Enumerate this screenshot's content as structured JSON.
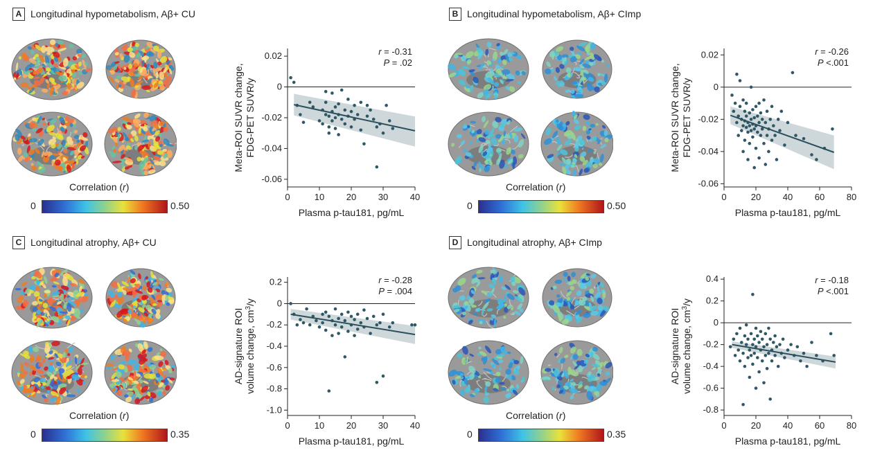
{
  "panels": [
    {
      "letter": "A",
      "title": "Longitudinal hypometabolism, Aβ+ CU",
      "brain_tone": "hot",
      "colorbar": {
        "label_text": "Correlation",
        "label_var": "r",
        "min": "0",
        "max": "0.50"
      },
      "stats": {
        "r_text": "= -0.31",
        "p_text": "= .02"
      },
      "ylabel_line1": "Meta-ROI SUVR change,",
      "ylabel_line2": "FDG-PET SUVR/y",
      "ylabel_sup": "",
      "xlabel": "Plasma p-tau181, pg/mL"
    },
    {
      "letter": "B",
      "title": "Longitudinal hypometabolism, Aβ+ CImp",
      "brain_tone": "cool",
      "colorbar": {
        "label_text": "Correlation",
        "label_var": "r",
        "min": "0",
        "max": "0.50"
      },
      "stats": {
        "r_text": "= -0.26",
        "p_text": "<.001"
      },
      "ylabel_line1": "Meta-ROI SUVR change,",
      "ylabel_line2": "FDG-PET SUVR/y",
      "ylabel_sup": "",
      "xlabel": "Plasma p-tau181, pg/mL"
    },
    {
      "letter": "C",
      "title": "Longitudinal atrophy, Aβ+ CU",
      "brain_tone": "mixed",
      "colorbar": {
        "label_text": "Correlation",
        "label_var": "r",
        "min": "0",
        "max": "0.35"
      },
      "stats": {
        "r_text": "= -0.28",
        "p_text": "= .004"
      },
      "ylabel_line1": "AD-signature ROI",
      "ylabel_line2": "volume change, cm",
      "ylabel_sup": "3",
      "ylabel_tail": "/y",
      "xlabel": "Plasma p-tau181, pg/mL"
    },
    {
      "letter": "D",
      "title": "Longitudinal atrophy, Aβ+ CImp",
      "brain_tone": "cool",
      "colorbar": {
        "label_text": "Correlation",
        "label_var": "r",
        "min": "0",
        "max": "0.35"
      },
      "stats": {
        "r_text": "= -0.18",
        "p_text": "<.001"
      },
      "ylabel_line1": "AD-signature ROI",
      "ylabel_line2": "volume change, cm",
      "ylabel_sup": "3",
      "ylabel_tail": "/y",
      "xlabel": "Plasma p-tau181, pg/mL"
    }
  ],
  "chart_data": [
    {
      "type": "scatter",
      "panel": "A",
      "xlim": [
        0,
        40
      ],
      "ylim": [
        -0.065,
        0.025
      ],
      "x_ticks": [
        0,
        10,
        20,
        30,
        40
      ],
      "x_tick_labels": [
        "0",
        "10",
        "20",
        "30",
        "40"
      ],
      "y_ticks": [
        0.02,
        0,
        -0.02,
        -0.04,
        -0.06
      ],
      "y_tick_labels": [
        "0.02",
        "0",
        "-0.02",
        "-0.04",
        "-0.06"
      ],
      "reference_line_y": 0,
      "fit": {
        "x": [
          2,
          40
        ],
        "y": [
          -0.0115,
          -0.0285
        ],
        "ci_upper": [
          -0.0045,
          -0.0192
        ],
        "ci_lower": [
          -0.0185,
          -0.0388
        ]
      },
      "points": [
        [
          1,
          0.006
        ],
        [
          2,
          0.003
        ],
        [
          3,
          -0.012
        ],
        [
          4,
          -0.018
        ],
        [
          5,
          -0.023
        ],
        [
          7,
          -0.01
        ],
        [
          8,
          -0.013
        ],
        [
          10,
          -0.022
        ],
        [
          11,
          -0.015
        ],
        [
          11,
          -0.024
        ],
        [
          12,
          -0.003
        ],
        [
          12,
          -0.01
        ],
        [
          12,
          -0.018
        ],
        [
          13,
          -0.019
        ],
        [
          13,
          -0.026
        ],
        [
          13,
          -0.03
        ],
        [
          14,
          -0.004
        ],
        [
          14,
          -0.016
        ],
        [
          14,
          -0.022
        ],
        [
          15,
          -0.013
        ],
        [
          15,
          -0.02
        ],
        [
          15,
          -0.027
        ],
        [
          16,
          -0.011
        ],
        [
          16,
          -0.018
        ],
        [
          16,
          -0.031
        ],
        [
          17,
          -0.002
        ],
        [
          17,
          -0.021
        ],
        [
          18,
          -0.015
        ],
        [
          18,
          -0.024
        ],
        [
          19,
          -0.008
        ],
        [
          19,
          -0.019
        ],
        [
          20,
          -0.016
        ],
        [
          20,
          -0.026
        ],
        [
          21,
          -0.012
        ],
        [
          21,
          -0.021
        ],
        [
          22,
          -0.018
        ],
        [
          23,
          -0.01
        ],
        [
          23,
          -0.028
        ],
        [
          24,
          -0.037
        ],
        [
          25,
          -0.012
        ],
        [
          25,
          -0.019
        ],
        [
          26,
          -0.015
        ],
        [
          27,
          -0.021
        ],
        [
          28,
          -0.052
        ],
        [
          28,
          -0.026
        ],
        [
          29,
          -0.024
        ],
        [
          30,
          -0.03
        ],
        [
          31,
          -0.012
        ],
        [
          32,
          -0.022
        ],
        [
          33,
          -0.027
        ]
      ]
    },
    {
      "type": "scatter",
      "panel": "B",
      "xlim": [
        0,
        80
      ],
      "ylim": [
        -0.062,
        0.024
      ],
      "x_ticks": [
        0,
        20,
        40,
        60,
        80
      ],
      "x_tick_labels": [
        "0",
        "20",
        "40",
        "60",
        "80"
      ],
      "y_ticks": [
        0.02,
        0,
        -0.02,
        -0.04,
        -0.06
      ],
      "y_tick_labels": [
        "0.02",
        "0",
        "-0.02",
        "-0.04",
        "-0.06"
      ],
      "reference_line_y": 0,
      "fit": {
        "x": [
          4,
          69
        ],
        "y": [
          -0.0175,
          -0.0405
        ],
        "ci_upper": [
          -0.012,
          -0.03
        ],
        "ci_lower": [
          -0.023,
          -0.051
        ]
      },
      "points": [
        [
          5,
          -0.005
        ],
        [
          6,
          -0.015
        ],
        [
          7,
          -0.01
        ],
        [
          8,
          -0.022
        ],
        [
          8,
          0.008
        ],
        [
          9,
          -0.018
        ],
        [
          9,
          -0.03
        ],
        [
          10,
          -0.012
        ],
        [
          10,
          0.004
        ],
        [
          11,
          -0.02
        ],
        [
          11,
          -0.027
        ],
        [
          12,
          -0.008
        ],
        [
          12,
          -0.024
        ],
        [
          12,
          -0.04
        ],
        [
          13,
          -0.015
        ],
        [
          13,
          -0.021
        ],
        [
          13,
          -0.033
        ],
        [
          14,
          -0.018
        ],
        [
          14,
          -0.025
        ],
        [
          14,
          -0.01
        ],
        [
          15,
          -0.022
        ],
        [
          15,
          -0.028
        ],
        [
          15,
          -0.045
        ],
        [
          16,
          -0.016
        ],
        [
          16,
          -0.024
        ],
        [
          16,
          -0.035
        ],
        [
          17,
          -0.02
        ],
        [
          17,
          -0.027
        ],
        [
          17,
          0.0
        ],
        [
          18,
          -0.014
        ],
        [
          18,
          -0.023
        ],
        [
          18,
          -0.031
        ],
        [
          19,
          -0.019
        ],
        [
          19,
          -0.026
        ],
        [
          19,
          -0.05
        ],
        [
          20,
          -0.012
        ],
        [
          20,
          -0.024
        ],
        [
          20,
          -0.038
        ],
        [
          21,
          -0.018
        ],
        [
          21,
          -0.028
        ],
        [
          22,
          -0.01
        ],
        [
          22,
          -0.022
        ],
        [
          22,
          -0.044
        ],
        [
          23,
          -0.016
        ],
        [
          23,
          -0.03
        ],
        [
          24,
          -0.02
        ],
        [
          24,
          -0.026
        ],
        [
          25,
          -0.008
        ],
        [
          25,
          -0.035
        ],
        [
          26,
          -0.022
        ],
        [
          26,
          -0.048
        ],
        [
          27,
          -0.015
        ],
        [
          27,
          -0.03
        ],
        [
          28,
          -0.026
        ],
        [
          28,
          -0.04
        ],
        [
          29,
          -0.02
        ],
        [
          30,
          -0.033
        ],
        [
          30,
          -0.012
        ],
        [
          31,
          -0.024
        ],
        [
          32,
          -0.03
        ],
        [
          33,
          -0.045
        ],
        [
          34,
          -0.02
        ],
        [
          35,
          -0.027
        ],
        [
          36,
          -0.015
        ],
        [
          38,
          -0.036
        ],
        [
          40,
          -0.022
        ],
        [
          43,
          0.009
        ],
        [
          45,
          -0.03
        ],
        [
          50,
          -0.032
        ],
        [
          55,
          -0.042
        ],
        [
          58,
          -0.045
        ],
        [
          63,
          -0.038
        ],
        [
          68,
          -0.026
        ]
      ]
    },
    {
      "type": "scatter",
      "panel": "C",
      "xlim": [
        0,
        40
      ],
      "ylim": [
        -1.05,
        0.25
      ],
      "x_ticks": [
        0,
        10,
        20,
        30,
        40
      ],
      "x_tick_labels": [
        "0",
        "10",
        "20",
        "30",
        "40"
      ],
      "y_ticks": [
        0.2,
        0,
        -0.2,
        -0.4,
        -0.6,
        -0.8,
        -1.0
      ],
      "y_tick_labels": [
        "0.2",
        "0",
        "-0.2",
        "-0.4",
        "-0.6",
        "-0.8",
        "-1.0"
      ],
      "reference_line_y": 0,
      "fit": {
        "x": [
          1,
          40
        ],
        "y": [
          -0.1,
          -0.29
        ],
        "ci_upper": [
          -0.05,
          -0.21
        ],
        "ci_lower": [
          -0.15,
          -0.38
        ]
      },
      "points": [
        [
          1,
          0.0
        ],
        [
          2,
          -0.1
        ],
        [
          3,
          -0.2
        ],
        [
          4,
          -0.15
        ],
        [
          5,
          -0.18
        ],
        [
          6,
          -0.05
        ],
        [
          7,
          -0.2
        ],
        [
          8,
          -0.12
        ],
        [
          9,
          -0.16
        ],
        [
          10,
          -0.22
        ],
        [
          11,
          -0.1
        ],
        [
          11,
          -0.18
        ],
        [
          12,
          -0.08
        ],
        [
          12,
          -0.25
        ],
        [
          13,
          -0.12
        ],
        [
          13,
          -0.82
        ],
        [
          14,
          -0.16
        ],
        [
          14,
          -0.3
        ],
        [
          15,
          -0.05
        ],
        [
          15,
          -0.2
        ],
        [
          16,
          -0.14
        ],
        [
          16,
          -0.28
        ],
        [
          17,
          -0.1
        ],
        [
          17,
          -0.22
        ],
        [
          18,
          -0.5
        ],
        [
          18,
          -0.16
        ],
        [
          19,
          -0.08
        ],
        [
          19,
          -0.26
        ],
        [
          20,
          -0.12
        ],
        [
          20,
          -0.2
        ],
        [
          21,
          -0.3
        ],
        [
          21,
          -0.15
        ],
        [
          22,
          -0.1
        ],
        [
          22,
          -0.24
        ],
        [
          23,
          -0.18
        ],
        [
          24,
          -0.06
        ],
        [
          24,
          -0.22
        ],
        [
          25,
          -0.14
        ],
        [
          26,
          -0.28
        ],
        [
          27,
          -0.12
        ],
        [
          28,
          -0.74
        ],
        [
          28,
          -0.2
        ],
        [
          29,
          -0.18
        ],
        [
          30,
          -0.68
        ],
        [
          30,
          -0.1
        ],
        [
          32,
          -0.22
        ],
        [
          33,
          -0.18
        ],
        [
          39,
          -0.2
        ],
        [
          40,
          -0.2
        ]
      ]
    },
    {
      "type": "scatter",
      "panel": "D",
      "xlim": [
        0,
        80
      ],
      "ylim": [
        -0.85,
        0.42
      ],
      "x_ticks": [
        0,
        20,
        40,
        60,
        80
      ],
      "x_tick_labels": [
        "0",
        "20",
        "40",
        "60",
        "80"
      ],
      "y_ticks": [
        0.4,
        0.2,
        0,
        -0.2,
        -0.4,
        -0.6,
        -0.8
      ],
      "y_tick_labels": [
        "0.4",
        "0.2",
        "0",
        "-0.2",
        "-0.4",
        "-0.6",
        "-0.8"
      ],
      "reference_line_y": 0,
      "fit": {
        "x": [
          5,
          70
        ],
        "y": [
          -0.2,
          -0.36
        ],
        "ci_upper": [
          -0.17,
          -0.31
        ],
        "ci_lower": [
          -0.23,
          -0.42
        ]
      },
      "points": [
        [
          4,
          -0.22
        ],
        [
          6,
          -0.15
        ],
        [
          7,
          -0.3
        ],
        [
          8,
          -0.1
        ],
        [
          9,
          -0.25
        ],
        [
          10,
          -0.05
        ],
        [
          10,
          -0.35
        ],
        [
          11,
          -0.18
        ],
        [
          12,
          -0.28
        ],
        [
          12,
          -0.75
        ],
        [
          13,
          -0.12
        ],
        [
          13,
          -0.4
        ],
        [
          14,
          -0.2
        ],
        [
          14,
          -0.02
        ],
        [
          15,
          -0.32
        ],
        [
          15,
          -0.15
        ],
        [
          16,
          -0.25
        ],
        [
          16,
          -0.5
        ],
        [
          17,
          -0.1
        ],
        [
          17,
          -0.3
        ],
        [
          18,
          0.26
        ],
        [
          18,
          -0.2
        ],
        [
          18,
          -0.38
        ],
        [
          19,
          -0.15
        ],
        [
          19,
          -0.28
        ],
        [
          20,
          -0.05
        ],
        [
          20,
          -0.22
        ],
        [
          20,
          -0.6
        ],
        [
          21,
          -0.32
        ],
        [
          21,
          -0.12
        ],
        [
          22,
          -0.18
        ],
        [
          22,
          -0.45
        ],
        [
          23,
          -0.25
        ],
        [
          23,
          -0.08
        ],
        [
          24,
          -0.35
        ],
        [
          24,
          -0.15
        ],
        [
          25,
          -0.22
        ],
        [
          25,
          -0.55
        ],
        [
          26,
          -0.1
        ],
        [
          26,
          -0.3
        ],
        [
          27,
          -0.2
        ],
        [
          27,
          -0.42
        ],
        [
          28,
          -0.05
        ],
        [
          28,
          -0.28
        ],
        [
          29,
          -0.15
        ],
        [
          29,
          -0.7
        ],
        [
          30,
          -0.25
        ],
        [
          30,
          -0.35
        ],
        [
          31,
          -0.18
        ],
        [
          32,
          -0.3
        ],
        [
          32,
          -0.12
        ],
        [
          33,
          -0.22
        ],
        [
          34,
          -0.4
        ],
        [
          35,
          -0.2
        ],
        [
          36,
          -0.28
        ],
        [
          37,
          -0.15
        ],
        [
          38,
          -0.32
        ],
        [
          40,
          -0.25
        ],
        [
          42,
          -0.2
        ],
        [
          44,
          -0.3
        ],
        [
          46,
          -0.22
        ],
        [
          48,
          -0.35
        ],
        [
          50,
          -0.28
        ],
        [
          52,
          -0.4
        ],
        [
          55,
          -0.18
        ],
        [
          58,
          -0.3
        ],
        [
          62,
          -0.35
        ],
        [
          67,
          -0.1
        ],
        [
          69,
          -0.3
        ]
      ]
    }
  ]
}
